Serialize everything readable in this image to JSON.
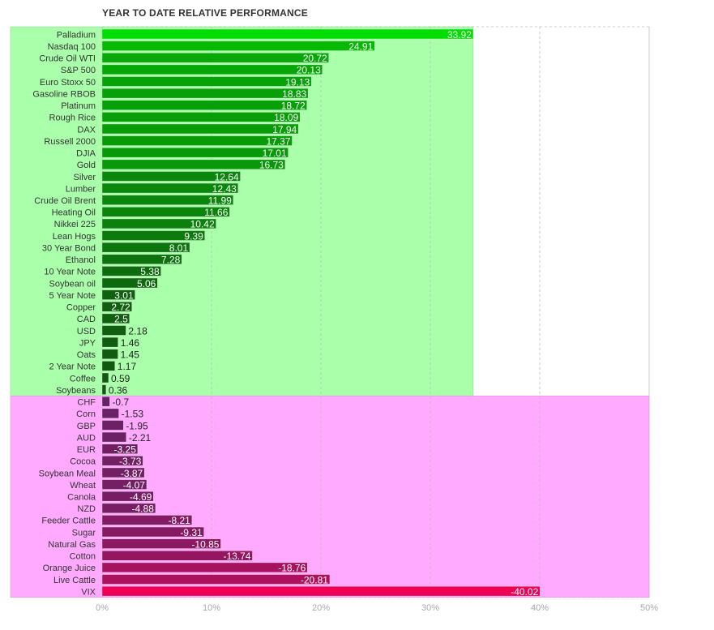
{
  "chart_data": {
    "type": "bar",
    "orientation": "horizontal",
    "title": "YEAR TO DATE RELATIVE PERFORMANCE",
    "xlabel": "",
    "ylabel": "",
    "xlim": [
      0,
      50
    ],
    "x_ticks": [
      "0%",
      "10%",
      "20%",
      "30%",
      "40%",
      "50%"
    ],
    "grid": "vertical dashed",
    "positive_region_color": "#aaffaa",
    "negative_region_color": "#ffaaff",
    "positive_bar_color_range": [
      "#00dd00",
      "#115511"
    ],
    "negative_bar_color_range": [
      "#662266",
      "#ee0055"
    ],
    "categories": [
      "Palladium",
      "Nasdaq 100",
      "Crude Oil WTI",
      "S&P 500",
      "Euro Stoxx 50",
      "Gasoline RBOB",
      "Platinum",
      "Rough Rice",
      "DAX",
      "Russell 2000",
      "DJIA",
      "Gold",
      "Silver",
      "Lumber",
      "Crude Oil Brent",
      "Heating Oil",
      "Nikkei 225",
      "Lean Hogs",
      "30 Year Bond",
      "Ethanol",
      "10 Year Note",
      "Soybean oil",
      "5 Year Note",
      "Copper",
      "CAD",
      "USD",
      "JPY",
      "Oats",
      "2 Year Note",
      "Coffee",
      "Soybeans",
      "CHF",
      "Corn",
      "GBP",
      "AUD",
      "EUR",
      "Cocoa",
      "Soybean Meal",
      "Wheat",
      "Canola",
      "NZD",
      "Feeder Cattle",
      "Sugar",
      "Natural Gas",
      "Cotton",
      "Orange Juice",
      "Live Cattle",
      "VIX"
    ],
    "values": [
      33.92,
      24.91,
      20.72,
      20.13,
      19.13,
      18.83,
      18.72,
      18.09,
      17.94,
      17.37,
      17.01,
      16.73,
      12.64,
      12.43,
      11.99,
      11.66,
      10.42,
      9.39,
      8.01,
      7.28,
      5.38,
      5.06,
      3.01,
      2.72,
      2.5,
      2.18,
      1.46,
      1.45,
      1.17,
      0.59,
      0.36,
      -0.7,
      -1.53,
      -1.95,
      -2.21,
      -3.25,
      -3.73,
      -3.87,
      -4.07,
      -4.69,
      -4.88,
      -8.21,
      -9.31,
      -10.85,
      -13.74,
      -18.76,
      -20.81,
      -40.02
    ],
    "value_labels": [
      "33.92",
      "24.91",
      "20.72",
      "20.13",
      "19.13",
      "18.83",
      "18.72",
      "18.09",
      "17.94",
      "17.37",
      "17.01",
      "16.73",
      "12.64",
      "12.43",
      "11.99",
      "11.66",
      "10.42",
      "9.39",
      "8.01",
      "7.28",
      "5.38",
      "5.06",
      "3.01",
      "2.72",
      "2.5",
      "2.18",
      "1.46",
      "1.45",
      "1.17",
      "0.59",
      "0.36",
      "-0.7",
      "-1.53",
      "-1.95",
      "-2.21",
      "-3.25",
      "-3.73",
      "-3.87",
      "-4.07",
      "-4.69",
      "-4.88",
      "-8.21",
      "-9.31",
      "-10.85",
      "-13.74",
      "-18.76",
      "-20.81",
      "-40.02"
    ]
  }
}
